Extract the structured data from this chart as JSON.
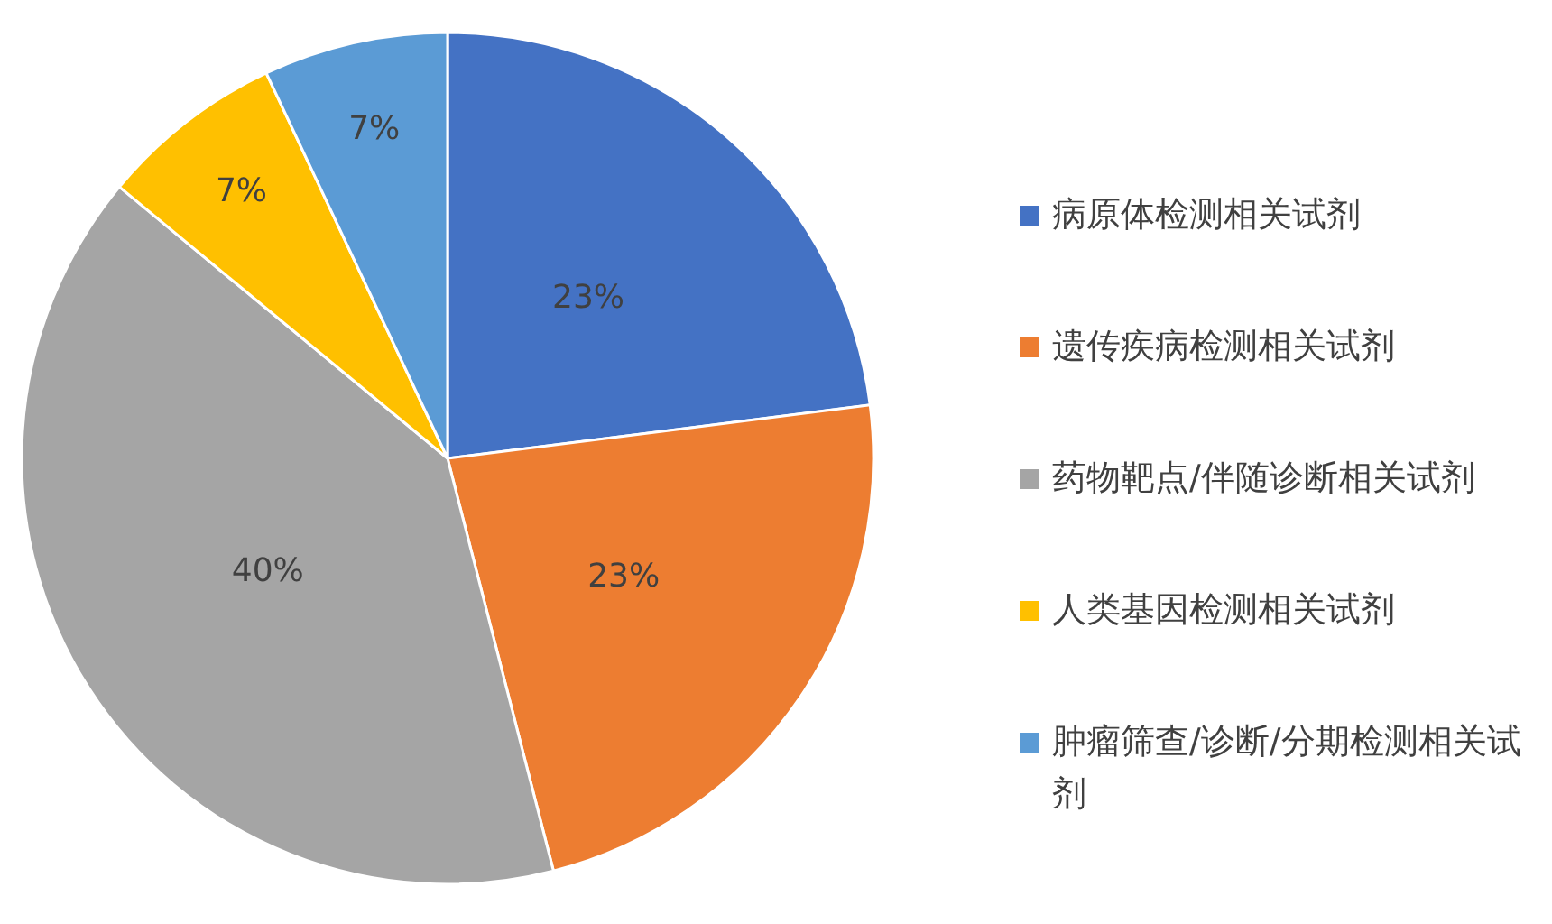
{
  "chart_data": {
    "type": "pie",
    "categories": [
      "病原体检测相关试剂",
      "遗传疾病检测相关试剂",
      "药物靶点/伴随诊断相关试剂",
      "人类基因检测相关试剂",
      "肿瘤筛查/诊断/分期检测相关试剂"
    ],
    "values": [
      23,
      23,
      40,
      7,
      7
    ],
    "colors": [
      "#4472c4",
      "#ed7d31",
      "#a5a5a5",
      "#ffc000",
      "#5b9bd5"
    ],
    "value_labels": [
      "23%",
      "23%",
      "40%",
      "7%",
      "7%"
    ],
    "legend": "right"
  }
}
